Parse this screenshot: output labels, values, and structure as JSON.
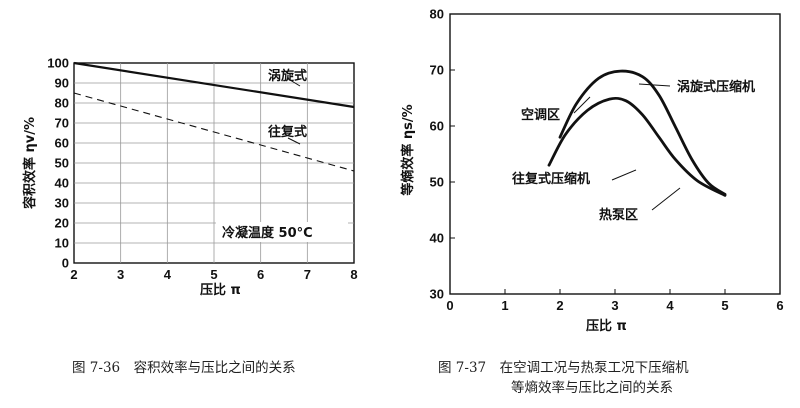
{
  "chart_data": [
    {
      "type": "line",
      "xlabel": "压比 π",
      "ylabel": "容积效率 ηv/%",
      "xlim": [
        2,
        8
      ],
      "ylim": [
        0,
        100
      ],
      "xticks": [
        "2",
        "3",
        "4",
        "5",
        "6",
        "7",
        "8"
      ],
      "yticks": [
        "0",
        "10",
        "20",
        "30",
        "40",
        "50",
        "60",
        "70",
        "80",
        "90",
        "100"
      ],
      "grid": true,
      "series": [
        {
          "name": "涡旋式",
          "style": "solid",
          "x": [
            2,
            8
          ],
          "y": [
            100,
            78
          ]
        },
        {
          "name": "往复式",
          "style": "dashed",
          "x": [
            2,
            8
          ],
          "y": [
            85,
            46
          ]
        }
      ],
      "annotations": [
        "冷凝温度 50°C"
      ],
      "caption": "图 7-36　容积效率与压比之间的关系"
    },
    {
      "type": "line",
      "xlabel": "压比 π",
      "ylabel": "等熵效率 ηs/%",
      "xlim": [
        0,
        6
      ],
      "ylim": [
        30,
        80
      ],
      "xticks": [
        "0",
        "1",
        "2",
        "3",
        "4",
        "5",
        "6"
      ],
      "yticks": [
        "30",
        "40",
        "50",
        "60",
        "70",
        "80"
      ],
      "grid": false,
      "series": [
        {
          "name": "涡旋式压缩机",
          "style": "solid",
          "x": [
            2.0,
            2.3,
            2.7,
            3.1,
            3.5,
            3.8,
            4.1,
            4.4,
            4.7,
            5.0
          ],
          "y": [
            58.0,
            64.0,
            68.5,
            69.8,
            68.8,
            65.5,
            59.8,
            54.0,
            49.8,
            47.8
          ]
        },
        {
          "name": "往复式压缩机",
          "style": "solid",
          "x": [
            1.8,
            2.1,
            2.5,
            2.9,
            3.2,
            3.5,
            3.8,
            4.1,
            4.5,
            5.0
          ],
          "y": [
            53.0,
            58.5,
            62.8,
            64.8,
            64.5,
            62.0,
            58.0,
            54.0,
            50.2,
            47.6
          ]
        }
      ],
      "region_labels": [
        "空调区",
        "热泵区"
      ],
      "caption_lines": [
        "图 7-37　在空调工况与热泵工况下压缩机",
        "等熵效率与压比之间的关系"
      ]
    }
  ],
  "colors": {
    "ink": "#111111",
    "grid": "#9a9a9a",
    "caption": "#222222"
  }
}
